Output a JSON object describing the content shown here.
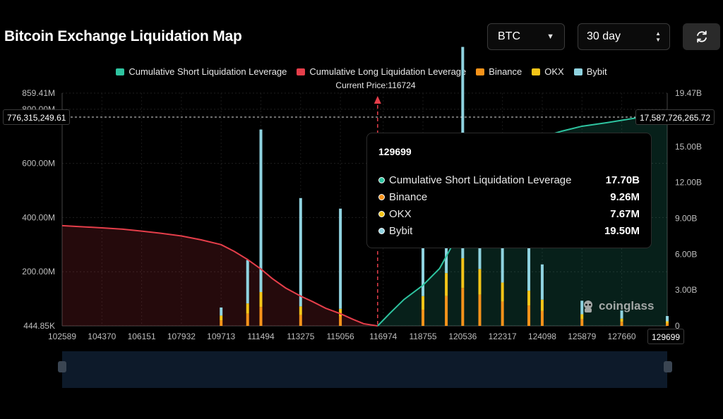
{
  "header": {
    "title": "Bitcoin Exchange Liquidation Map",
    "symbol_select": "BTC",
    "range_select": "30 day",
    "refresh_icon": "refresh-icon"
  },
  "legend": {
    "short": "Cumulative Short Liquidation Leverage",
    "long": "Cumulative Long Liquidation Leverage",
    "binance": "Binance",
    "okx": "OKX",
    "bybit": "Bybit"
  },
  "current_price": "Current Price:116724",
  "crosshair": {
    "left_value": "776,315,249.61",
    "right_value": "17,587,726,265.72",
    "x_value": "129699"
  },
  "tooltip": {
    "title": "129699",
    "rows": [
      {
        "label": "Cumulative Short Liquidation Leverage",
        "value": "17.70B"
      },
      {
        "label": "Binance",
        "value": "9.26M"
      },
      {
        "label": "OKX",
        "value": "7.67M"
      },
      {
        "label": "Bybit",
        "value": "19.50M"
      }
    ]
  },
  "watermark": "coinglass",
  "colors": {
    "short": "#2ec4a0",
    "long": "#e53e4a",
    "binance": "#f7931a",
    "okx": "#f5c518",
    "bybit": "#8fd3e0",
    "background": "#000000"
  },
  "chart_data": {
    "type": "bar",
    "title": "Bitcoin Exchange Liquidation Map",
    "x_ticks": [
      "102589",
      "104370",
      "106151",
      "107932",
      "109713",
      "111494",
      "113275",
      "115056",
      "116974",
      "118755",
      "120536",
      "122317",
      "124098",
      "125879",
      "127660"
    ],
    "x_range": [
      102589,
      129699
    ],
    "current_price": 116724,
    "y_left": {
      "ticks": [
        "444.85K",
        "200.00M",
        "400.00M",
        "600.00M",
        "800.00M",
        "859.41M"
      ],
      "range": [
        0,
        859410000
      ]
    },
    "y_right": {
      "ticks": [
        "0",
        "3.00B",
        "6.00B",
        "9.00B",
        "12.00B",
        "15.00B",
        "19.47B"
      ],
      "range": [
        0,
        19470000000
      ]
    },
    "series": [
      {
        "name": "Cumulative Long Liquidation Leverage",
        "type": "area",
        "axis": "left",
        "x": [
          102589,
          103500,
          104370,
          105300,
          106151,
          107000,
          107932,
          108800,
          109713,
          110300,
          110900,
          111494,
          112000,
          112600,
          113275,
          113800,
          114400,
          115056,
          115600,
          116100,
          116724
        ],
        "y": [
          370000000,
          366000000,
          362000000,
          357000000,
          350000000,
          342000000,
          332000000,
          318000000,
          300000000,
          275000000,
          245000000,
          210000000,
          175000000,
          140000000,
          110000000,
          90000000,
          65000000,
          45000000,
          25000000,
          8000000,
          0
        ]
      },
      {
        "name": "Cumulative Short Liquidation Leverage",
        "type": "area",
        "axis": "right",
        "x": [
          116724,
          117300,
          117900,
          118755,
          119500,
          120000,
          120536,
          121000,
          121500,
          122317,
          123000,
          124098,
          125000,
          125879,
          127000,
          127660,
          128500,
          129699
        ],
        "y": [
          0,
          1100000000,
          2200000000,
          3400000000,
          4800000000,
          6500000000,
          8500000000,
          10500000000,
          12400000000,
          14000000000,
          14900000000,
          15800000000,
          16300000000,
          16700000000,
          17000000000,
          17200000000,
          17450000000,
          17700000000
        ]
      },
      {
        "name": "Binance",
        "type": "bar",
        "axis": "left",
        "x": [
          109713,
          110900,
          111494,
          113275,
          115056,
          118755,
          119800,
          120536,
          121300,
          122317,
          123500,
          124098,
          125879,
          127660,
          129699
        ],
        "y": [
          20000000,
          45000000,
          70000000,
          40000000,
          35000000,
          60000000,
          110000000,
          140000000,
          115000000,
          90000000,
          75000000,
          55000000,
          25000000,
          15000000,
          9260000
        ]
      },
      {
        "name": "OKX",
        "type": "bar",
        "axis": "left",
        "x": [
          109713,
          110900,
          111494,
          113275,
          115056,
          118755,
          119800,
          120536,
          121300,
          122317,
          123500,
          124098,
          125879,
          127660,
          129699
        ],
        "y": [
          18000000,
          38000000,
          55000000,
          32000000,
          28000000,
          50000000,
          85000000,
          110000000,
          95000000,
          70000000,
          55000000,
          42000000,
          18000000,
          12000000,
          7670000
        ]
      },
      {
        "name": "Bybit",
        "type": "bar",
        "axis": "left",
        "x": [
          109713,
          110900,
          111494,
          113275,
          115056,
          118755,
          119800,
          120536,
          121300,
          122317,
          123500,
          124098,
          125879,
          127660,
          129699
        ],
        "y": [
          30000000,
          160000000,
          600000000,
          400000000,
          370000000,
          250000000,
          300000000,
          780000000,
          350000000,
          280000000,
          240000000,
          130000000,
          50000000,
          30000000,
          19500000
        ]
      }
    ],
    "legend": "top-center",
    "grid": true
  }
}
